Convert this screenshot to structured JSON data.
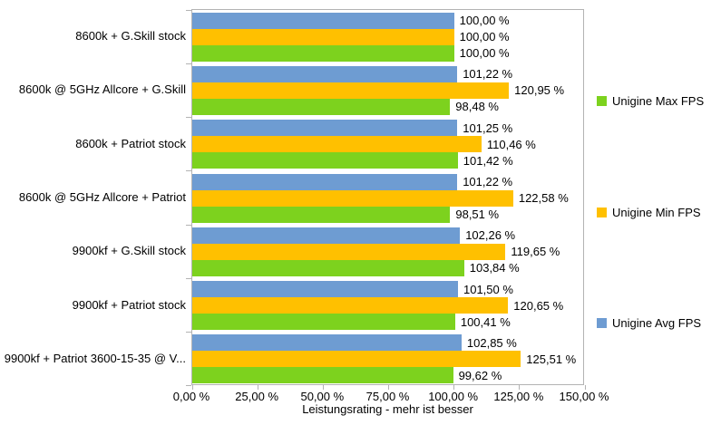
{
  "chart_data": {
    "type": "bar",
    "orientation": "horizontal",
    "title": "",
    "xlabel": "Leistungsrating - mehr ist besser",
    "ylabel": "",
    "xlim": [
      0,
      150
    ],
    "x_ticks": [
      0,
      25,
      50,
      75,
      100,
      125,
      150
    ],
    "x_tick_labels": [
      "0,00 %",
      "25,00 %",
      "50,00 %",
      "75,00 %",
      "100,00 %",
      "125,00 %",
      "150,00 %"
    ],
    "grid": false,
    "legend_position": "right",
    "categories": [
      "8600k + G.Skill stock",
      "8600k @ 5GHz Allcore + G.Skill",
      "8600k + Patriot stock",
      "8600k @ 5GHz Allcore + Patriot",
      "9900kf + G.Skill stock",
      "9900kf + Patriot stock",
      "9900kf + Patriot 3600-15-35 @ V..."
    ],
    "series": [
      {
        "name": "Unigine Max FPS",
        "color": "#7dd21e",
        "values": [
          100.0,
          98.48,
          101.42,
          98.51,
          103.84,
          100.41,
          99.62
        ],
        "labels": [
          "100,00 %",
          "98,48 %",
          "101,42 %",
          "98,51 %",
          "103,84 %",
          "100,41 %",
          "99,62 %"
        ]
      },
      {
        "name": "Unigine Min FPS",
        "color": "#ffc000",
        "values": [
          100.0,
          120.95,
          110.46,
          122.58,
          119.65,
          120.65,
          125.51
        ],
        "labels": [
          "100,00 %",
          "120,95 %",
          "110,46 %",
          "122,58 %",
          "119,65 %",
          "120,65 %",
          "125,51 %"
        ]
      },
      {
        "name": "Unigine Avg FPS",
        "color": "#6e9cd2",
        "values": [
          100.0,
          101.22,
          101.25,
          101.22,
          102.26,
          101.5,
          102.85
        ],
        "labels": [
          "100,00 %",
          "101,22 %",
          "101,25 %",
          "101,22 %",
          "102,26 %",
          "101,50 %",
          "102,85 %"
        ]
      }
    ],
    "bar_display_order_top_to_bottom": [
      "Unigine Avg FPS",
      "Unigine Min FPS",
      "Unigine Max FPS"
    ],
    "colors": {
      "axis_line": "#b3b3b3",
      "text": "#000000",
      "background": "#ffffff"
    }
  }
}
